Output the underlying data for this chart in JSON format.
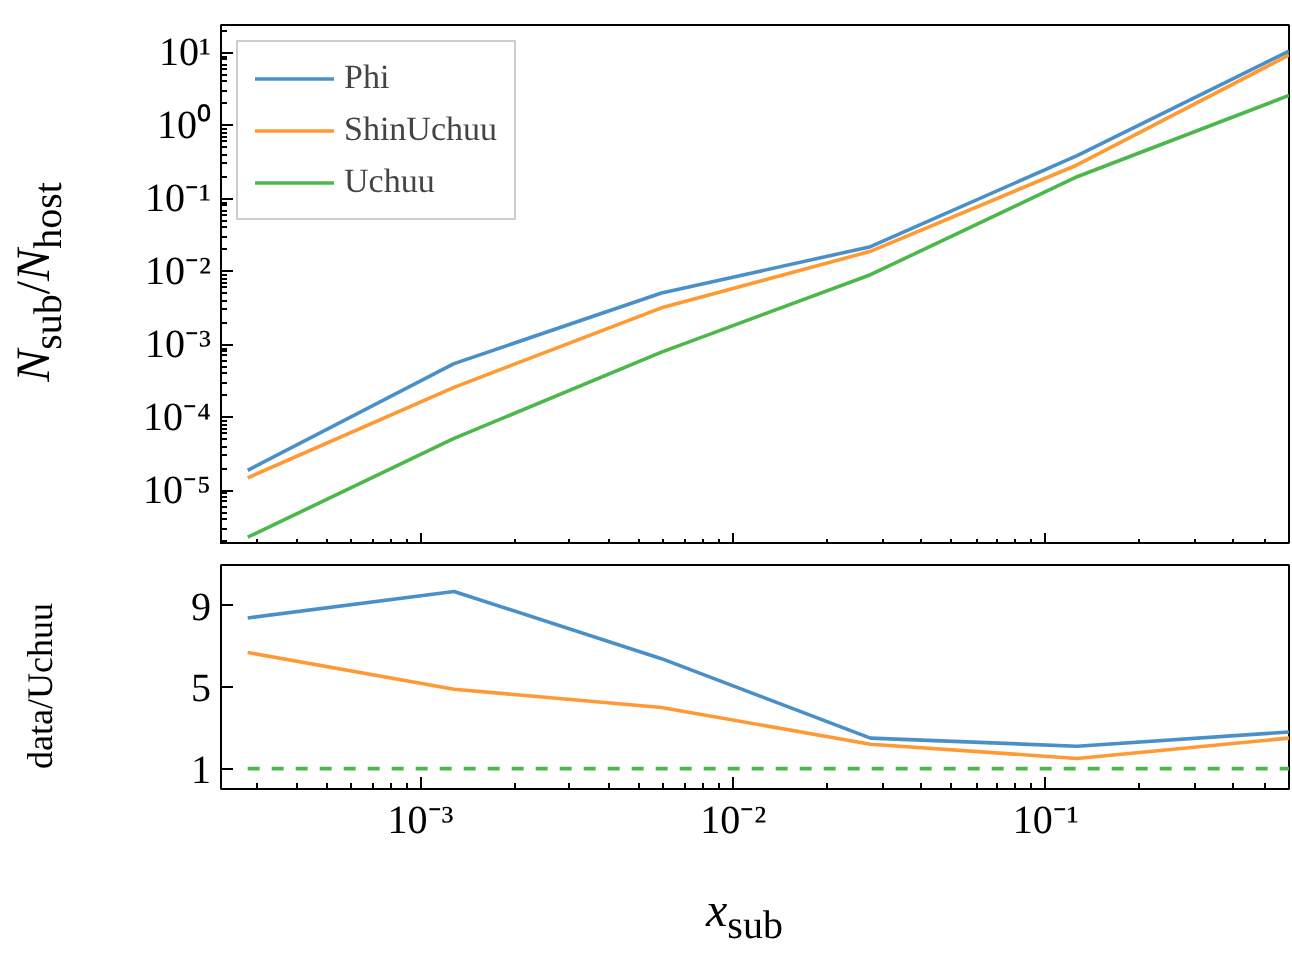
{
  "chart_data": [
    {
      "type": "line",
      "ylabel": "N$_{sub}$/N$_{host}$",
      "log": "xy",
      "legend": "top left",
      "grid": false,
      "tick_labels": "y",
      "x": [
        0.00028,
        0.00128,
        0.0059,
        0.0275,
        0.126,
        0.6
      ],
      "xlim": [
        0.00023,
        0.6
      ],
      "xticks": [
        {
          "value": 0.001,
          "label": null
        },
        {
          "value": 0.01,
          "label": null
        },
        {
          "value": 0.1,
          "label": null
        }
      ],
      "ylim": [
        1.8e-06,
        24
      ],
      "yticks": [
        {
          "value": 1e-05,
          "label": "10⁻⁵"
        },
        {
          "value": 0.0001,
          "label": "10⁻⁴"
        },
        {
          "value": 0.001,
          "label": "10⁻³"
        },
        {
          "value": 0.01,
          "label": "10⁻²"
        },
        {
          "value": 0.1,
          "label": "10⁻¹"
        },
        {
          "value": 1,
          "label": "10⁰"
        },
        {
          "value": 10,
          "label": "10¹"
        }
      ],
      "series": [
        {
          "name": "Phi",
          "color": "#4a90c8",
          "values": [
            1.9e-05,
            0.00055,
            0.0051,
            0.022,
            0.39,
            10.5
          ]
        },
        {
          "name": "ShinUchuu",
          "color": "#ff9933",
          "values": [
            1.5e-05,
            0.00026,
            0.0032,
            0.019,
            0.29,
            9.3
          ]
        },
        {
          "name": "Uchuu",
          "color": "#4cb84c",
          "values": [
            2.3e-06,
            5.2e-05,
            0.00079,
            0.0091,
            0.2,
            2.6
          ]
        }
      ]
    },
    {
      "type": "line",
      "xlabel": "x$_{sub}$",
      "ylabel": "data/Uchuu",
      "log": "x",
      "grid": false,
      "x": [
        0.00028,
        0.00128,
        0.0059,
        0.0275,
        0.126,
        0.6
      ],
      "xlim": [
        0.00023,
        0.6
      ],
      "xticks": [
        {
          "value": 0.001,
          "label": "10⁻³"
        },
        {
          "value": 0.01,
          "label": "10⁻²"
        },
        {
          "value": 0.1,
          "label": "10⁻¹"
        }
      ],
      "ylim": [
        0,
        11
      ],
      "yticks": [
        1,
        5,
        9
      ],
      "series": [
        {
          "color": "#4a90c8",
          "values": [
            8.4,
            9.7,
            6.4,
            2.5,
            2.1,
            2.8
          ]
        },
        {
          "color": "#ff9933",
          "values": [
            6.7,
            4.9,
            4.0,
            2.2,
            1.5,
            2.5
          ]
        },
        {
          "color": "#4cb84c",
          "values": [
            1,
            1,
            1,
            1,
            1,
            1
          ],
          "line_style": "dashed"
        }
      ]
    }
  ]
}
